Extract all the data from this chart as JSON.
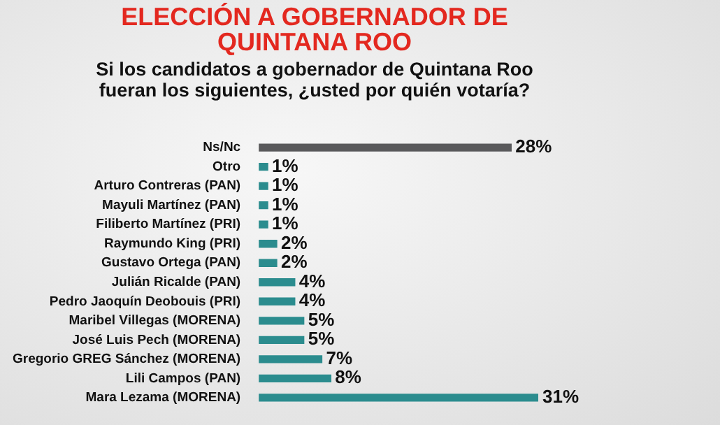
{
  "chart_data": {
    "type": "bar",
    "orientation": "horizontal",
    "title": "ELECCIÓN A GOBERNADOR DE QUINTANA ROO",
    "subtitle": "Si los candidatos a gobernador de Quintana Roo fueran los siguientes, ¿usted por quién votaría?",
    "categories": [
      "Ns/Nc",
      "Otro",
      "Arturo Contreras (PAN)",
      "Mayuli Martínez (PAN)",
      "Filiberto Martínez (PRI)",
      "Raymundo King (PRI)",
      "Gustavo Ortega (PAN)",
      "Julián Ricalde (PAN)",
      "Pedro Jaoquín Deobouis (PRI)",
      "Maribel Villegas (MORENA)",
      "José Luis Pech (MORENA)",
      "Gregorio GREG Sánchez (MORENA)",
      "Lili Campos (PAN)",
      "Mara Lezama (MORENA)"
    ],
    "values": [
      28,
      1,
      1,
      1,
      1,
      2,
      2,
      4,
      4,
      5,
      5,
      7,
      8,
      31
    ],
    "value_labels": [
      "28%",
      "1%",
      "1%",
      "1%",
      "1%",
      "2%",
      "2%",
      "4%",
      "4%",
      "5%",
      "5%",
      "7%",
      "8%",
      "31%"
    ],
    "colors": [
      "#59595b",
      "#2b8c8e",
      "#2b8c8e",
      "#2b8c8e",
      "#2b8c8e",
      "#2b8c8e",
      "#2b8c8e",
      "#2b8c8e",
      "#2b8c8e",
      "#2b8c8e",
      "#2b8c8e",
      "#2b8c8e",
      "#2b8c8e",
      "#2b8c8e"
    ],
    "tick_labels": "y",
    "grid": false,
    "legend": false
  }
}
